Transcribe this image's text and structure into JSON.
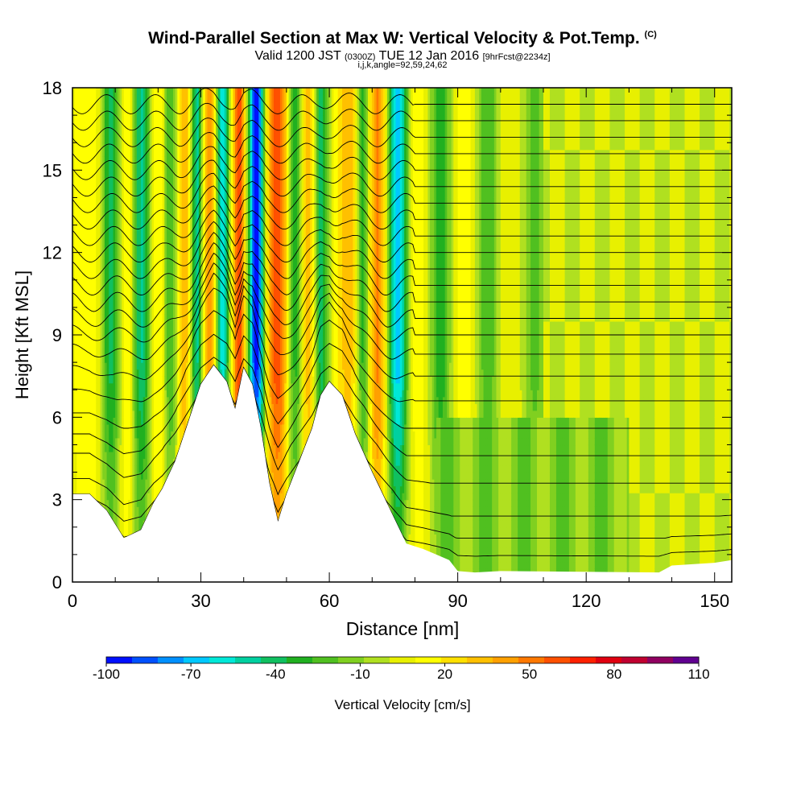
{
  "chart_data": {
    "type": "heatmap",
    "title": "Wind-Parallel Section at Max W: Vertical Velocity & Pot.Temp.",
    "title_mark": "(C)",
    "subtitle": {
      "part1": "Valid 1200 JST",
      "part2": "(0300Z)",
      "part3": "TUE 12 Jan 2016",
      "part4": "[9hrFcst@2234z]"
    },
    "subtitle2": "i,j,k,angle=92,59,24,62",
    "xlabel": "Distance [nm]",
    "ylabel": "Height [Kft MSL]",
    "xlim": [
      0,
      154
    ],
    "ylim": [
      0,
      18
    ],
    "x_ticks": [
      "0",
      "30",
      "60",
      "90",
      "120",
      "150"
    ],
    "y_ticks": [
      "0",
      "3",
      "6",
      "9",
      "12",
      "15",
      "18"
    ],
    "colorbar": {
      "label": "Vertical Velocity [cm/s]",
      "min": -100,
      "max": 110,
      "step": 10,
      "tick_labels": [
        "-100",
        "-70",
        "-40",
        "-10",
        "20",
        "50",
        "80",
        "110"
      ],
      "colors": [
        "#0010ff",
        "#0050ff",
        "#0090ff",
        "#00c8ff",
        "#00e8d8",
        "#00d0a0",
        "#10c060",
        "#20b020",
        "#50c020",
        "#80d020",
        "#b0e020",
        "#e8f000",
        "#ffff00",
        "#ffe000",
        "#ffc000",
        "#ffa000",
        "#ff7800",
        "#ff5000",
        "#ff2000",
        "#e00010",
        "#c00030",
        "#900060",
        "#600090"
      ]
    },
    "grid": false,
    "terrain": [
      [
        0,
        3.2
      ],
      [
        4,
        3.2
      ],
      [
        8,
        2.6
      ],
      [
        10,
        2.1
      ],
      [
        12,
        1.6
      ],
      [
        16,
        1.9
      ],
      [
        19,
        2.9
      ],
      [
        21,
        3.4
      ],
      [
        24,
        4.4
      ],
      [
        27,
        5.8
      ],
      [
        30,
        7.2
      ],
      [
        33,
        7.9
      ],
      [
        36,
        7.3
      ],
      [
        38,
        6.3
      ],
      [
        40,
        7.8
      ],
      [
        42,
        7.2
      ],
      [
        44,
        5.6
      ],
      [
        46,
        3.6
      ],
      [
        48,
        2.2
      ],
      [
        50,
        3.2
      ],
      [
        53,
        4.4
      ],
      [
        56,
        5.6
      ],
      [
        58,
        6.8
      ],
      [
        60,
        7.3
      ],
      [
        63,
        6.8
      ],
      [
        66,
        5.4
      ],
      [
        70,
        4.0
      ],
      [
        74,
        2.7
      ],
      [
        78,
        1.4
      ],
      [
        82,
        1.2
      ],
      [
        85,
        1.0
      ],
      [
        88,
        0.8
      ],
      [
        90,
        0.4
      ],
      [
        94,
        0.35
      ],
      [
        100,
        0.4
      ],
      [
        137,
        0.35
      ],
      [
        140,
        0.6
      ],
      [
        150,
        0.7
      ],
      [
        154,
        0.8
      ]
    ],
    "updrafts": [
      {
        "x": 5,
        "w": 3.5,
        "v": 30
      },
      {
        "x": 13,
        "w": 2.5,
        "v": 45
      },
      {
        "x": 20,
        "w": 2.8,
        "v": 40
      },
      {
        "x": 26,
        "w": 3.0,
        "v": 55
      },
      {
        "x": 32,
        "w": 2.0,
        "v": 60
      },
      {
        "x": 39,
        "w": 1.6,
        "v": 80
      },
      {
        "x": 48,
        "w": 3.0,
        "v": 80
      },
      {
        "x": 55,
        "w": 2.2,
        "v": 60
      },
      {
        "x": 65,
        "w": 3.0,
        "v": 50
      },
      {
        "x": 71,
        "w": 2.5,
        "v": 70
      },
      {
        "x": 80,
        "w": 3.0,
        "v": 30
      },
      {
        "x": 91,
        "w": 3.0,
        "v": 25
      },
      {
        "x": 103,
        "w": 3.0,
        "v": 20
      }
    ],
    "downdrafts": [
      {
        "x": 9,
        "w": 2.5,
        "v": -40
      },
      {
        "x": 16,
        "w": 2.5,
        "v": -50
      },
      {
        "x": 23,
        "w": 2.0,
        "v": -40
      },
      {
        "x": 29,
        "w": 1.6,
        "v": -60
      },
      {
        "x": 35,
        "w": 1.6,
        "v": -60
      },
      {
        "x": 43,
        "w": 2.0,
        "v": -100
      },
      {
        "x": 52,
        "w": 2.2,
        "v": -40
      },
      {
        "x": 58,
        "w": 2.0,
        "v": -40
      },
      {
        "x": 68,
        "w": 2.0,
        "v": -45
      },
      {
        "x": 76,
        "w": 2.5,
        "v": -70
      },
      {
        "x": 86,
        "w": 2.5,
        "v": -30
      },
      {
        "x": 97,
        "w": 2.5,
        "v": -20
      },
      {
        "x": 108,
        "w": 3.0,
        "v": -15
      }
    ],
    "isentropes": {
      "levels": [
        0.9,
        1.6,
        2.4,
        3.6,
        4.6,
        5.6,
        6.6,
        7.5,
        8.3,
        9.0,
        9.6,
        10.2,
        10.8,
        11.4,
        12.0,
        12.6,
        13.2,
        13.8,
        14.4,
        15.0,
        15.6,
        16.2,
        16.8,
        17.4
      ]
    }
  }
}
